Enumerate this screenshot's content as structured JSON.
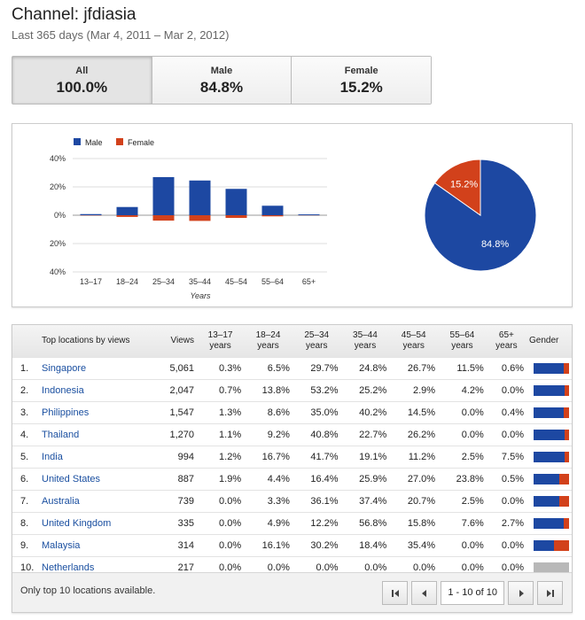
{
  "header": {
    "title": "Channel: jfdiasia",
    "subtitle": "Last 365 days (Mar 4, 2011 – Mar 2, 2012)"
  },
  "tabs": [
    {
      "label": "All",
      "value": "100.0%",
      "active": true
    },
    {
      "label": "Male",
      "value": "84.8%",
      "active": false
    },
    {
      "label": "Female",
      "value": "15.2%",
      "active": false
    }
  ],
  "colors": {
    "male": "#1d48a2",
    "female": "#d2411b"
  },
  "chart_data": [
    {
      "type": "bar",
      "categories": [
        "13–17",
        "18–24",
        "25–34",
        "35–44",
        "45–54",
        "55–64",
        "65+"
      ],
      "series": [
        {
          "name": "Male",
          "values": [
            0.8,
            5.8,
            26.9,
            24.5,
            18.6,
            6.7,
            0.6
          ]
        },
        {
          "name": "Female",
          "values": [
            0.2,
            1.2,
            3.8,
            4.0,
            1.9,
            0.8,
            0.1
          ]
        }
      ],
      "female_direction": "downward",
      "xlabel": "Years",
      "ylabel": "",
      "ylim": [
        -40,
        40
      ],
      "yticks": [
        "40%",
        "20%",
        "0%",
        "20%",
        "40%"
      ],
      "legend": "top-left",
      "grid": true
    },
    {
      "type": "pie",
      "categories": [
        "Male",
        "Female"
      ],
      "values": [
        84.8,
        15.2
      ],
      "labels": [
        "84.8%",
        "15.2%"
      ]
    }
  ],
  "table": {
    "headers": {
      "location": "Top locations by views",
      "views": "Views",
      "ages": [
        "13–17 years",
        "18–24 years",
        "25–34 years",
        "35–44 years",
        "45–54 years",
        "55–64 years",
        "65+ years"
      ],
      "gender": "Gender"
    },
    "rows": [
      {
        "idx": "1.",
        "location": "Singapore",
        "views": "5,061",
        "ages": [
          "0.3%",
          "6.5%",
          "29.7%",
          "24.8%",
          "26.7%",
          "11.5%",
          "0.6%"
        ],
        "male": 85
      },
      {
        "idx": "2.",
        "location": "Indonesia",
        "views": "2,047",
        "ages": [
          "0.7%",
          "13.8%",
          "53.2%",
          "25.2%",
          "2.9%",
          "4.2%",
          "0.0%"
        ],
        "male": 87
      },
      {
        "idx": "3.",
        "location": "Philippines",
        "views": "1,547",
        "ages": [
          "1.3%",
          "8.6%",
          "35.0%",
          "40.2%",
          "14.5%",
          "0.0%",
          "0.4%"
        ],
        "male": 85
      },
      {
        "idx": "4.",
        "location": "Thailand",
        "views": "1,270",
        "ages": [
          "1.1%",
          "9.2%",
          "40.8%",
          "22.7%",
          "26.2%",
          "0.0%",
          "0.0%"
        ],
        "male": 87
      },
      {
        "idx": "5.",
        "location": "India",
        "views": "994",
        "ages": [
          "1.2%",
          "16.7%",
          "41.7%",
          "19.1%",
          "11.2%",
          "2.5%",
          "7.5%"
        ],
        "male": 87
      },
      {
        "idx": "6.",
        "location": "United States",
        "views": "887",
        "ages": [
          "1.9%",
          "4.4%",
          "16.4%",
          "25.9%",
          "27.0%",
          "23.8%",
          "0.5%"
        ],
        "male": 73
      },
      {
        "idx": "7.",
        "location": "Australia",
        "views": "739",
        "ages": [
          "0.0%",
          "3.3%",
          "36.1%",
          "37.4%",
          "20.7%",
          "2.5%",
          "0.0%"
        ],
        "male": 73
      },
      {
        "idx": "8.",
        "location": "United Kingdom",
        "views": "335",
        "ages": [
          "0.0%",
          "4.9%",
          "12.2%",
          "56.8%",
          "15.8%",
          "7.6%",
          "2.7%"
        ],
        "male": 85
      },
      {
        "idx": "9.",
        "location": "Malaysia",
        "views": "314",
        "ages": [
          "0.0%",
          "16.1%",
          "30.2%",
          "18.4%",
          "35.4%",
          "0.0%",
          "0.0%"
        ],
        "male": 58
      },
      {
        "idx": "10.",
        "location": "Netherlands",
        "views": "217",
        "ages": [
          "0.0%",
          "0.0%",
          "0.0%",
          "0.0%",
          "0.0%",
          "0.0%",
          "0.0%"
        ],
        "male": null
      }
    ]
  },
  "footer": {
    "note": "Only top 10 locations available.",
    "page_info": "1 - 10 of 10"
  }
}
